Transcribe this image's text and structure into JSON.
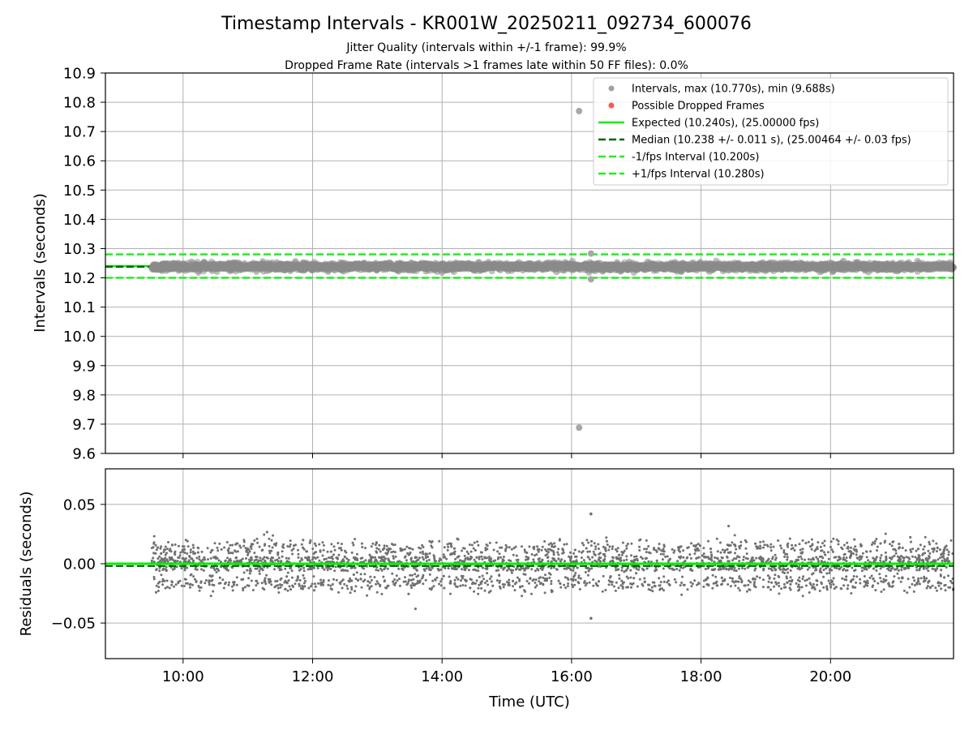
{
  "chart_data": [
    {
      "type": "scatter",
      "title": "Timestamp Intervals - KR001W_20250211_092734_600076",
      "subtitle_lines": [
        "Jitter Quality (intervals within +/-1 frame): 99.9%",
        "Dropped Frame Rate (intervals >1 frames late within 50 FF files): 0.0%"
      ],
      "xlabel": "",
      "ylabel": "Intervals (seconds)",
      "xlim": [
        "08:48",
        "21:54"
      ],
      "ylim": [
        9.6,
        10.9
      ],
      "yticks": [
        "9.6",
        "9.7",
        "9.8",
        "9.9",
        "10.0",
        "10.1",
        "10.2",
        "10.3",
        "10.4",
        "10.5",
        "10.6",
        "10.7",
        "10.8",
        "10.9"
      ],
      "xticks": [
        "10:00",
        "12:00",
        "14:00",
        "16:00",
        "18:00",
        "20:00"
      ],
      "grid": true,
      "legend_position": "top-right",
      "series": [
        {
          "name": "Intervals, max (10.770s), min (9.688s)",
          "kind": "scatter",
          "color": "#808080",
          "x_range": [
            "09:31",
            "21:54"
          ],
          "y_center": 10.238,
          "y_spread": 0.02,
          "outliers": [
            {
              "x": "16:07",
              "y": 10.77
            },
            {
              "x": "16:07",
              "y": 9.688
            },
            {
              "x": "16:18",
              "y": 10.283
            },
            {
              "x": "16:18",
              "y": 10.195
            }
          ]
        },
        {
          "name": "Possible Dropped Frames",
          "kind": "scatter",
          "color": "#ff0000",
          "points": []
        },
        {
          "name": "Expected (10.240s), (25.00000 fps)",
          "kind": "hline",
          "y": 10.24,
          "color": "#00ee00",
          "dash": "solid"
        },
        {
          "name": "Median (10.238 +/- 0.011 s), (25.00464 +/- 0.03 fps)",
          "kind": "hline",
          "y": 10.238,
          "color": "#006400",
          "dash": "dashed"
        },
        {
          "name": "-1/fps Interval (10.200s)",
          "kind": "hline",
          "y": 10.2,
          "color": "#22ee22",
          "dash": "dashed"
        },
        {
          "name": "+1/fps Interval (10.280s)",
          "kind": "hline",
          "y": 10.28,
          "color": "#22ee22",
          "dash": "dashed"
        }
      ]
    },
    {
      "type": "scatter",
      "xlabel": "Time (UTC)",
      "ylabel": "Residuals (seconds)",
      "xlim": [
        "08:48",
        "21:54"
      ],
      "ylim": [
        -0.08,
        0.08
      ],
      "yticks": [
        "−0.05",
        "0.00",
        "0.05"
      ],
      "ytick_values": [
        -0.05,
        0.0,
        0.05
      ],
      "xticks": [
        "10:00",
        "12:00",
        "14:00",
        "16:00",
        "18:00",
        "20:00"
      ],
      "grid": true,
      "series": [
        {
          "kind": "scatter",
          "color": "#808080",
          "x_range": [
            "09:31",
            "21:54"
          ],
          "y_center": 0.0,
          "y_spread": 0.018,
          "outliers": [
            {
              "x": "16:18",
              "y": 0.042
            },
            {
              "x": "16:18",
              "y": -0.046
            }
          ]
        },
        {
          "kind": "hline",
          "y": 0.0,
          "color": "#00ee00",
          "dash": "solid"
        },
        {
          "kind": "hline",
          "y": -0.002,
          "color": "#006400",
          "dash": "dashed"
        }
      ]
    }
  ]
}
